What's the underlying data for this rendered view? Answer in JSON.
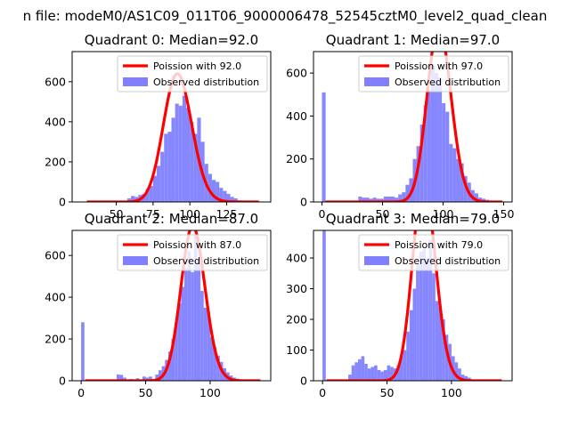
{
  "figure_title": "n file: modeM0/AS1C09_011T06_9000006478_52545cztM0_level2_quad_clean",
  "colors": {
    "poisson": "#ff0000",
    "hist": "#8080ff"
  },
  "chart_data": [
    {
      "type": "bar",
      "title": "Quadrant 0: Median=92.0",
      "median": 92.0,
      "xlim": [
        20,
        155
      ],
      "ylim": [
        0,
        750
      ],
      "xticks": [
        50,
        75,
        100,
        125
      ],
      "yticks": [
        0,
        200,
        400,
        600
      ],
      "legend": {
        "location": "top-right",
        "poisson_label": "Poission with 92.0",
        "hist_label": "Observed distribution"
      },
      "bin_width": 2.5,
      "bins": [
        [
          57.5,
          18
        ],
        [
          60,
          30
        ],
        [
          62.5,
          25
        ],
        [
          65,
          35
        ],
        [
          67.5,
          40
        ],
        [
          70,
          65
        ],
        [
          72.5,
          80
        ],
        [
          75,
          130
        ],
        [
          77.5,
          180
        ],
        [
          80,
          250
        ],
        [
          82.5,
          340
        ],
        [
          85,
          350
        ],
        [
          87.5,
          420
        ],
        [
          90,
          490
        ],
        [
          92.5,
          480
        ],
        [
          95,
          530
        ],
        [
          97.5,
          470
        ],
        [
          100,
          400
        ],
        [
          102.5,
          340
        ],
        [
          105,
          420
        ],
        [
          107.5,
          300
        ],
        [
          110,
          190
        ],
        [
          112.5,
          140
        ],
        [
          115,
          110
        ],
        [
          117.5,
          100
        ],
        [
          120,
          70
        ],
        [
          122.5,
          55
        ],
        [
          125,
          40
        ],
        [
          127.5,
          25
        ],
        [
          130,
          18
        ],
        [
          132.5,
          8
        ]
      ]
    },
    {
      "type": "bar",
      "title": "Quadrant 1: Median=97.0",
      "median": 97.0,
      "xlim": [
        -7,
        157
      ],
      "ylim": [
        0,
        700
      ],
      "xticks": [
        0,
        50,
        100,
        150
      ],
      "yticks": [
        0,
        200,
        400,
        600
      ],
      "legend": {
        "location": "top-right",
        "poisson_label": "Poission with 97.0",
        "hist_label": "Observed distribution"
      },
      "bin_width": 3,
      "bins": [
        [
          0,
          510
        ],
        [
          30,
          25
        ],
        [
          33,
          20
        ],
        [
          36,
          20
        ],
        [
          39,
          15
        ],
        [
          42,
          20
        ],
        [
          45,
          15
        ],
        [
          48,
          15
        ],
        [
          51,
          25
        ],
        [
          54,
          25
        ],
        [
          57,
          25
        ],
        [
          60,
          20
        ],
        [
          63,
          35
        ],
        [
          66,
          45
        ],
        [
          69,
          80
        ],
        [
          72,
          110
        ],
        [
          75,
          200
        ],
        [
          78,
          260
        ],
        [
          81,
          360
        ],
        [
          84,
          450
        ],
        [
          87,
          520
        ],
        [
          90,
          640
        ],
        [
          93,
          600
        ],
        [
          96,
          580
        ],
        [
          99,
          460
        ],
        [
          102,
          420
        ],
        [
          105,
          270
        ],
        [
          108,
          250
        ],
        [
          111,
          200
        ],
        [
          114,
          180
        ],
        [
          117,
          120
        ],
        [
          120,
          90
        ],
        [
          123,
          55
        ],
        [
          126,
          40
        ],
        [
          129,
          20
        ],
        [
          132,
          15
        ],
        [
          135,
          10
        ]
      ]
    },
    {
      "type": "bar",
      "title": "Quadrant 2: Median=87.0",
      "median": 87.0,
      "xlim": [
        -7,
        147
      ],
      "ylim": [
        0,
        720
      ],
      "xticks": [
        0,
        50,
        100
      ],
      "yticks": [
        0,
        200,
        400,
        600
      ],
      "legend": {
        "location": "top-right",
        "poisson_label": "Poission with 87.0",
        "hist_label": "Observed distribution"
      },
      "bin_width": 2.5,
      "bins": [
        [
          0,
          280
        ],
        [
          27.5,
          30
        ],
        [
          30,
          28
        ],
        [
          32.5,
          15
        ],
        [
          37.5,
          8
        ],
        [
          42.5,
          12
        ],
        [
          47.5,
          20
        ],
        [
          50,
          15
        ],
        [
          52.5,
          20
        ],
        [
          57.5,
          30
        ],
        [
          60,
          50
        ],
        [
          62.5,
          70
        ],
        [
          65,
          100
        ],
        [
          67.5,
          140
        ],
        [
          70,
          200
        ],
        [
          72.5,
          280
        ],
        [
          75,
          370
        ],
        [
          77.5,
          450
        ],
        [
          80,
          540
        ],
        [
          82.5,
          620
        ],
        [
          85,
          520
        ],
        [
          87.5,
          700
        ],
        [
          90,
          580
        ],
        [
          92.5,
          430
        ],
        [
          95,
          350
        ],
        [
          97.5,
          330
        ],
        [
          100,
          210
        ],
        [
          102.5,
          160
        ],
        [
          105,
          120
        ],
        [
          107.5,
          90
        ],
        [
          110,
          60
        ],
        [
          112.5,
          40
        ],
        [
          115,
          25
        ],
        [
          117.5,
          15
        ],
        [
          120,
          10
        ],
        [
          122.5,
          5
        ]
      ]
    },
    {
      "type": "bar",
      "title": "Quadrant 3: Median=79.0",
      "median": 79.0,
      "xlim": [
        -7,
        147
      ],
      "ylim": [
        0,
        490
      ],
      "xticks": [
        0,
        50,
        100
      ],
      "yticks": [
        0,
        100,
        200,
        300,
        400
      ],
      "legend": {
        "location": "top-right",
        "poisson_label": "Poission with 79.0",
        "hist_label": "Observed distribution"
      },
      "bin_width": 2.5,
      "bins": [
        [
          0,
          490
        ],
        [
          20,
          20
        ],
        [
          22.5,
          50
        ],
        [
          25,
          60
        ],
        [
          27.5,
          70
        ],
        [
          30,
          80
        ],
        [
          32.5,
          55
        ],
        [
          35,
          40
        ],
        [
          37.5,
          45
        ],
        [
          40,
          50
        ],
        [
          42.5,
          35
        ],
        [
          45,
          30
        ],
        [
          47.5,
          35
        ],
        [
          50,
          50
        ],
        [
          52.5,
          45
        ],
        [
          55,
          40
        ],
        [
          57.5,
          50
        ],
        [
          60,
          80
        ],
        [
          62.5,
          100
        ],
        [
          65,
          160
        ],
        [
          67.5,
          230
        ],
        [
          70,
          300
        ],
        [
          72.5,
          380
        ],
        [
          75,
          420
        ],
        [
          77.5,
          430
        ],
        [
          80,
          400
        ],
        [
          82.5,
          460
        ],
        [
          85,
          350
        ],
        [
          87.5,
          260
        ],
        [
          90,
          240
        ],
        [
          92.5,
          200
        ],
        [
          95,
          150
        ],
        [
          97.5,
          120
        ],
        [
          100,
          80
        ],
        [
          102.5,
          60
        ],
        [
          105,
          40
        ],
        [
          107.5,
          20
        ],
        [
          110,
          15
        ],
        [
          112.5,
          10
        ]
      ]
    }
  ]
}
